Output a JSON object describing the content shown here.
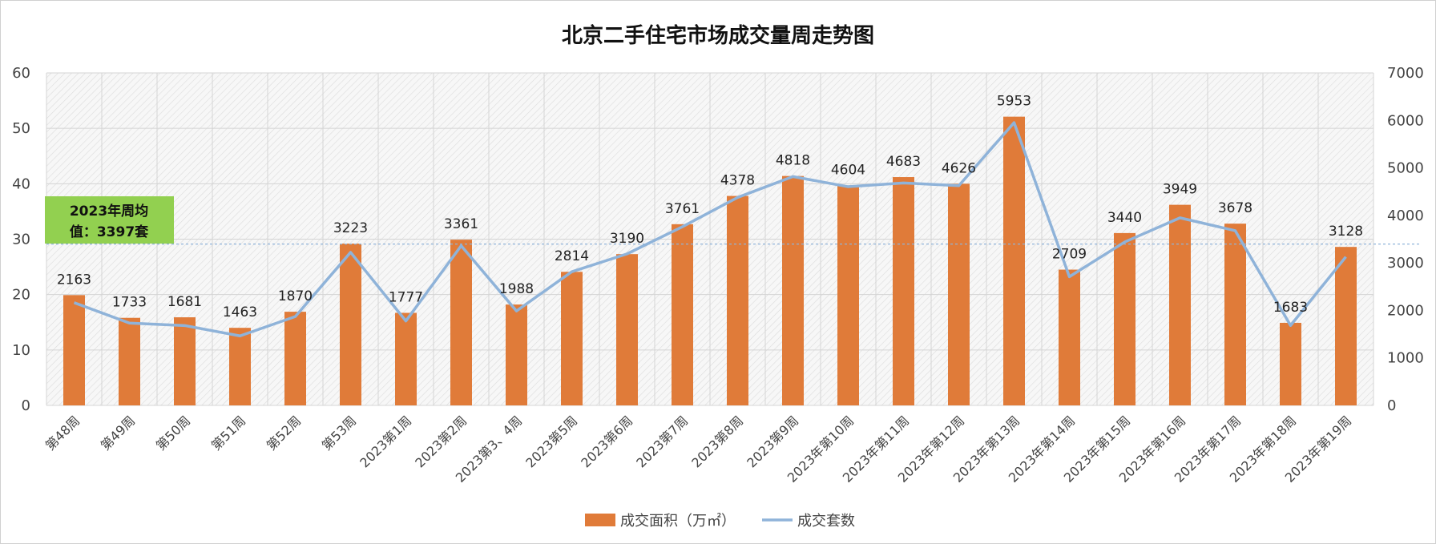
{
  "chart_data": {
    "type": "bar",
    "title": "北京二手住宅市场成交量周走势图",
    "categories": [
      "第48周",
      "第49周",
      "第50周",
      "第51周",
      "第52周",
      "第53周",
      "2023第1周",
      "2023第2周",
      "2023第3、4周",
      "2023第5周",
      "2023第6周",
      "2023第7周",
      "2023第8周",
      "2023第9周",
      "2023年第10周",
      "2023年第11周",
      "2023年第12周",
      "2023年第13周",
      "2023年第14周",
      "2023年第15周",
      "2023年第16周",
      "2023年第17周",
      "2023年第18周",
      "2023年第19周"
    ],
    "series": [
      {
        "name": "成交面积（万㎡）",
        "type": "bar",
        "axis": "left",
        "color": "#e07b39",
        "values": [
          19.9,
          15.8,
          15.9,
          14.0,
          16.9,
          29.2,
          16.7,
          29.9,
          18.2,
          24.1,
          27.3,
          32.7,
          37.8,
          41.4,
          39.7,
          41.2,
          40.0,
          52.1,
          24.5,
          31.1,
          36.2,
          32.8,
          14.9,
          28.6
        ]
      },
      {
        "name": "成交套数",
        "type": "line",
        "axis": "right",
        "color": "#8fb3d9",
        "values": [
          2163,
          1733,
          1681,
          1463,
          1870,
          3223,
          1777,
          3361,
          1988,
          2814,
          3190,
          3761,
          4378,
          4818,
          4604,
          4683,
          4626,
          5953,
          2709,
          3440,
          3949,
          3678,
          1683,
          3128
        ]
      }
    ],
    "y_left": {
      "ylim": [
        0,
        60
      ],
      "ticks": [
        "0",
        "10",
        "20",
        "30",
        "40",
        "50",
        "60"
      ]
    },
    "y_right": {
      "ylim": [
        0,
        7000
      ],
      "ticks": [
        "0",
        "1000",
        "2000",
        "3000",
        "4000",
        "5000",
        "6000",
        "7000"
      ]
    },
    "reference_line": {
      "value": 3397,
      "axis": "right",
      "color": "#8fb3d9"
    },
    "annotation": {
      "line1": "2023年周均",
      "line2": "值：3397套",
      "color": "#92d050"
    },
    "legend": {
      "position": "bottom"
    },
    "grid": true
  }
}
